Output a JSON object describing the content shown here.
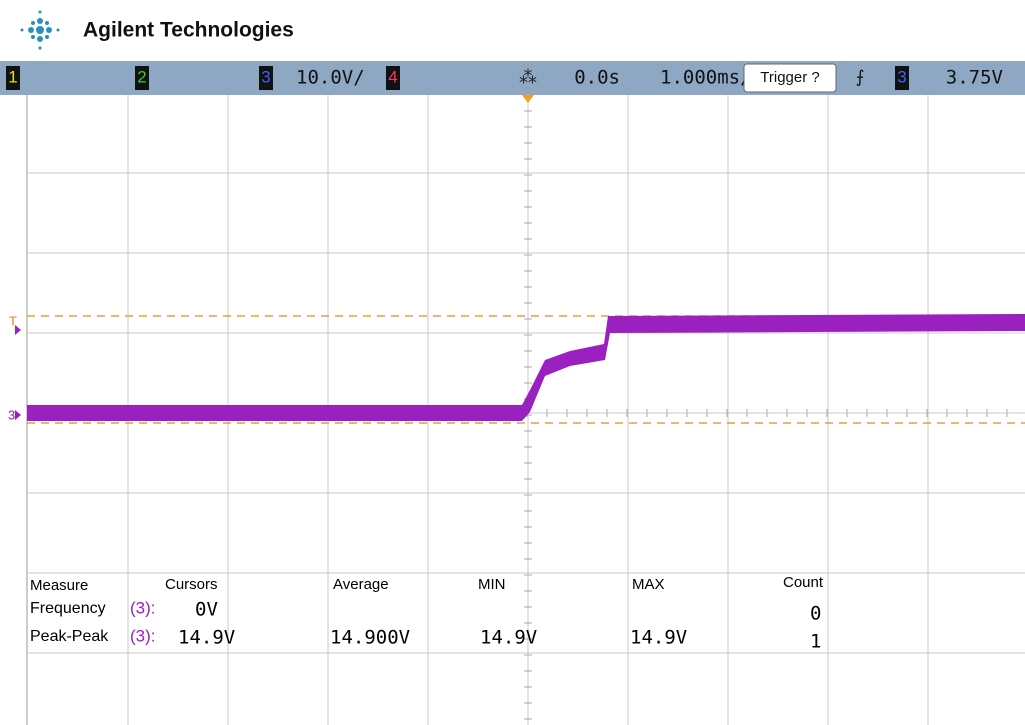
{
  "header": {
    "brand": "Agilent Technologies"
  },
  "status_bar": {
    "ch1": "1",
    "ch2": "2",
    "ch3": "3",
    "ch3_scale": "10.0V/",
    "ch4": "4",
    "delay": "0.0s",
    "timebase": "1.000ms/",
    "trigger_button": "Trigger ?",
    "trigger_source": "3",
    "trigger_level": "3.75V"
  },
  "markers": {
    "trigger": "T",
    "channel": "3"
  },
  "measurements": {
    "headers": [
      "Measure",
      "Cursors",
      "Average",
      "MIN",
      "MAX",
      "Count"
    ],
    "rows": [
      {
        "name": "Frequency",
        "source": "(3):",
        "current": "0V",
        "count": "0"
      },
      {
        "name": "Peak-Peak",
        "source": "(3):",
        "current": "14.9V",
        "average": "14.900V",
        "min": "14.9V",
        "max": "14.9V",
        "count": "1"
      }
    ]
  }
}
